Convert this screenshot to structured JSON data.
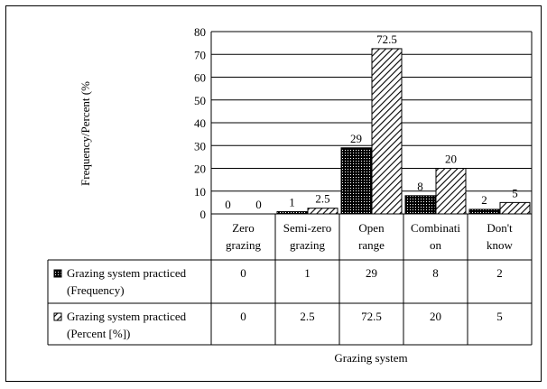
{
  "chart_data": {
    "type": "bar",
    "ylabel": "Frequency/Percent (%",
    "xlabel": "Grazing system",
    "ylim": [
      0,
      80
    ],
    "yticks": [
      0,
      10,
      20,
      30,
      40,
      50,
      60,
      70,
      80
    ],
    "grid": true,
    "categories": [
      [
        "Zero",
        "grazing"
      ],
      [
        "Semi-zero",
        "grazing"
      ],
      [
        "Open",
        "range"
      ],
      [
        "Combinati",
        "on"
      ],
      [
        "Don't",
        "know"
      ]
    ],
    "series": [
      {
        "name": [
          "Grazing system practiced",
          "(Frequency)"
        ],
        "pattern": "dots",
        "values": [
          0,
          1,
          29,
          8,
          2
        ],
        "labels": [
          "0",
          "1",
          "29",
          "8",
          "2"
        ]
      },
      {
        "name": [
          "Grazing system practiced",
          "(Percent [%])"
        ],
        "pattern": "hatch",
        "values": [
          0,
          2.5,
          72.5,
          20,
          5
        ],
        "labels": [
          "0",
          "2.5",
          "72.5",
          "20",
          "5"
        ]
      }
    ],
    "legend_placement": "data table"
  }
}
